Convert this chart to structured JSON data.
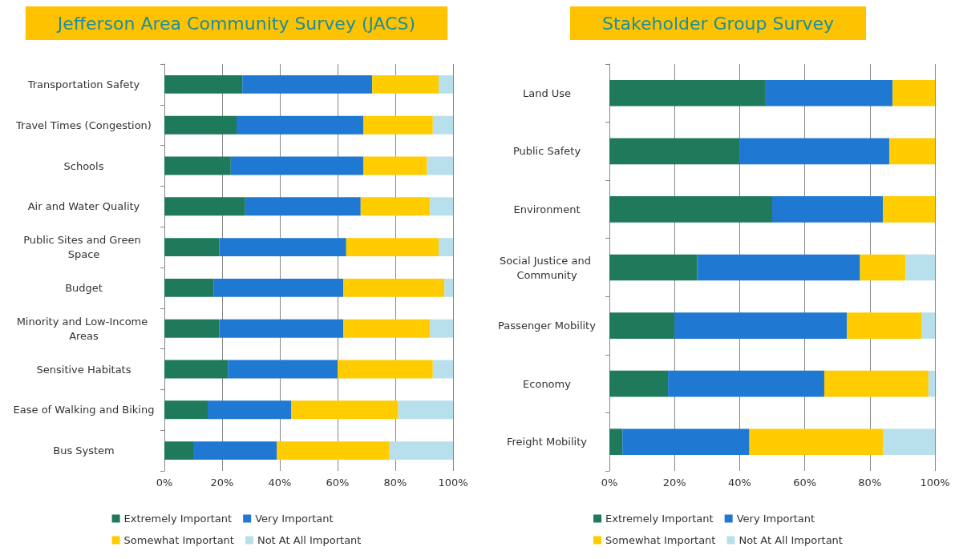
{
  "chart_data": [
    {
      "type": "bar",
      "orientation": "horizontal",
      "stacked": true,
      "title": "Jefferson Area Community Survey (JACS)",
      "categories": [
        "Transportation Safety",
        "Travel Times (Congestion)",
        "Schools",
        "Air and Water Quality",
        "Public Sites and Green Space",
        "Budget",
        "Minority and Low-Income Areas",
        "Sensitive Habitats",
        "Ease of Walking and Biking",
        "Bus System"
      ],
      "series": [
        {
          "name": "Extremely Important",
          "color": "#1e7a5a",
          "values": [
            27,
            25,
            23,
            28,
            19,
            17,
            19,
            22,
            15,
            10
          ]
        },
        {
          "name": "Very Important",
          "color": "#1f78d1",
          "values": [
            45,
            44,
            46,
            40,
            44,
            45,
            43,
            38,
            29,
            29
          ]
        },
        {
          "name": "Somewhat Important",
          "color": "#ffcc00",
          "values": [
            23,
            24,
            22,
            24,
            32,
            35,
            30,
            33,
            37,
            39
          ]
        },
        {
          "name": "Not At All Important",
          "color": "#b8e0ec",
          "values": [
            5,
            7,
            9,
            8,
            5,
            3,
            8,
            7,
            19,
            22
          ]
        }
      ],
      "xlim": [
        0,
        100
      ],
      "xticks": [
        {
          "value": 0,
          "label": "0%"
        },
        {
          "value": 20,
          "label": "20%"
        },
        {
          "value": 40,
          "label": "40%"
        },
        {
          "value": 60,
          "label": "60%"
        },
        {
          "value": 80,
          "label": "80%"
        },
        {
          "value": 100,
          "label": "100%"
        }
      ],
      "grid": "x",
      "legend": "bottom"
    },
    {
      "type": "bar",
      "orientation": "horizontal",
      "stacked": true,
      "title": "Stakeholder Group Survey",
      "categories": [
        "Land Use",
        "Public Safety",
        "Environment",
        "Social Justice and Community",
        "Passenger Mobility",
        "Economy",
        "Freight Mobility"
      ],
      "series": [
        {
          "name": "Extremely Important",
          "color": "#1e7a5a",
          "values": [
            48,
            40,
            50,
            27,
            20,
            18,
            4
          ]
        },
        {
          "name": "Very Important",
          "color": "#1f78d1",
          "values": [
            39,
            46,
            34,
            50,
            53,
            48,
            39
          ]
        },
        {
          "name": "Somewhat Important",
          "color": "#ffcc00",
          "values": [
            13,
            14,
            16,
            14,
            23,
            32,
            41
          ]
        },
        {
          "name": "Not At All Important",
          "color": "#b8e0ec",
          "values": [
            0,
            0,
            0,
            9,
            4,
            2,
            16
          ]
        }
      ],
      "xlim": [
        0,
        100
      ],
      "xticks": [
        {
          "value": 0,
          "label": "0%"
        },
        {
          "value": 20,
          "label": "20%"
        },
        {
          "value": 40,
          "label": "40%"
        },
        {
          "value": 60,
          "label": "60%"
        },
        {
          "value": 80,
          "label": "80%"
        },
        {
          "value": 100,
          "label": "100%"
        }
      ],
      "grid": "x",
      "legend": "bottom"
    }
  ]
}
